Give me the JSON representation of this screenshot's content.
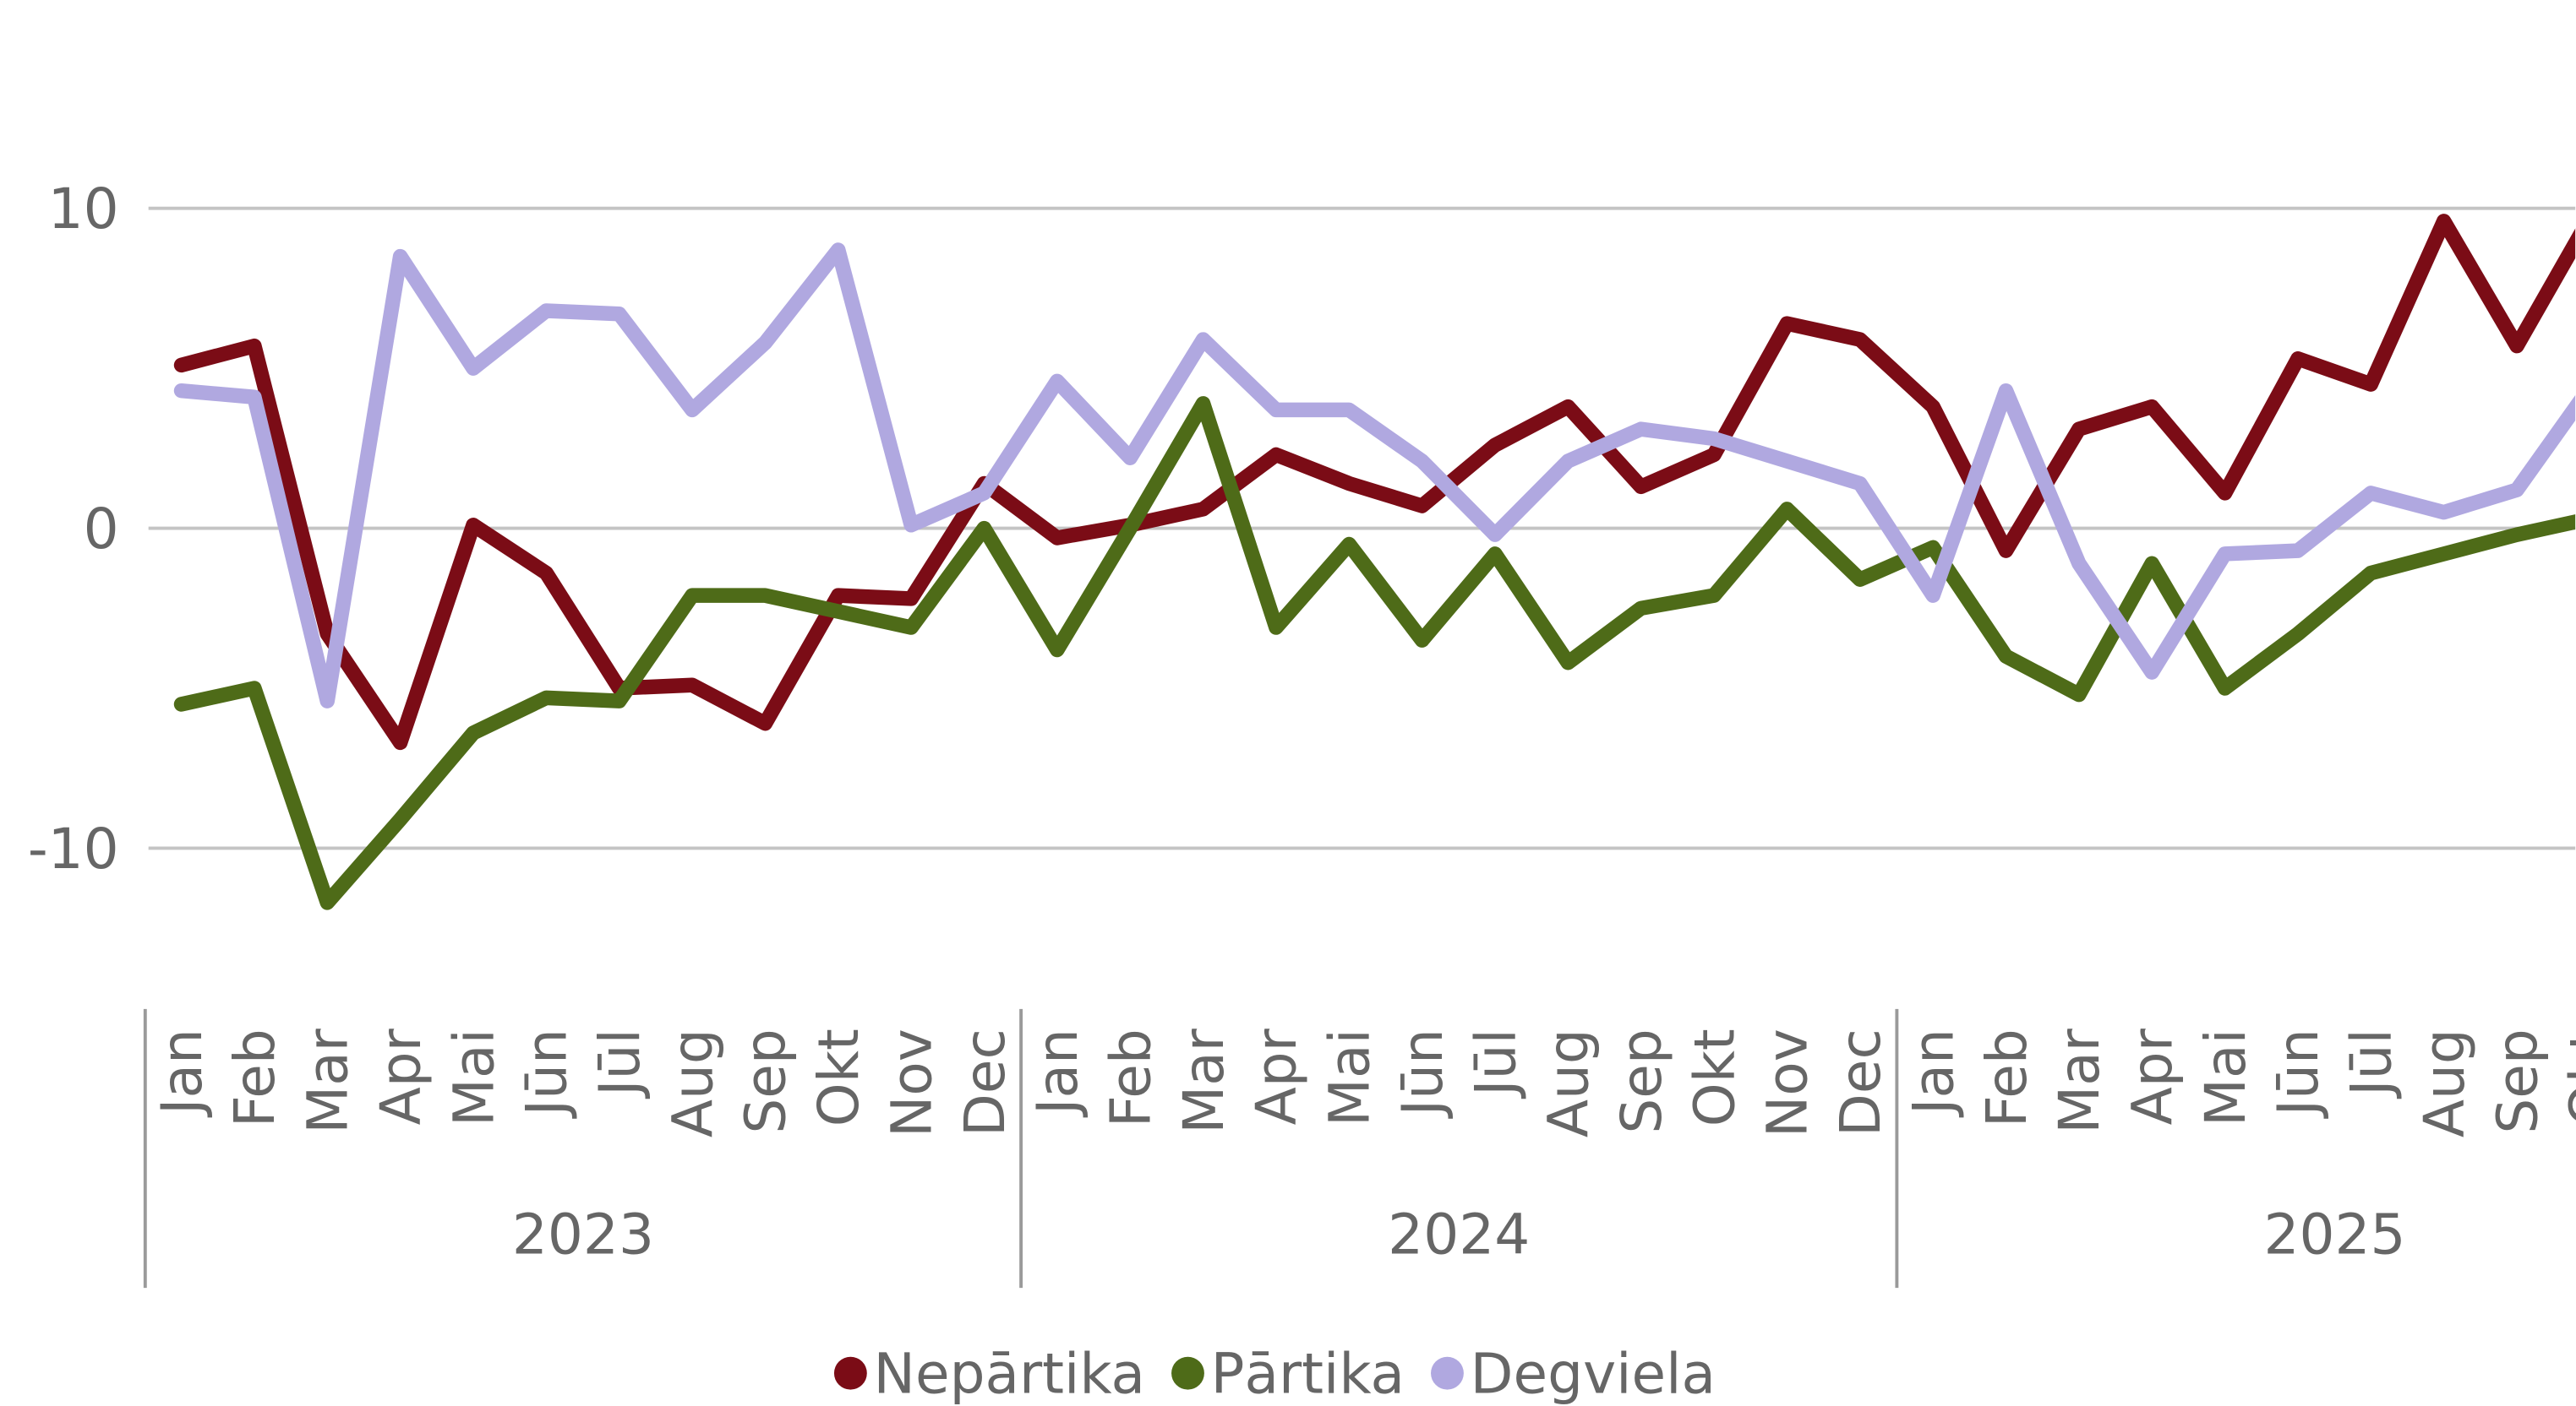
{
  "chart_data": {
    "type": "line",
    "categories": [
      "Jan",
      "Feb",
      "Mar",
      "Apr",
      "Mai",
      "Jūn",
      "Jūl",
      "Aug",
      "Sep",
      "Okt",
      "Nov",
      "Dec",
      "Jan",
      "Feb",
      "Mar",
      "Apr",
      "Mai",
      "Jūn",
      "Jūl",
      "Aug",
      "Sep",
      "Okt",
      "Nov",
      "Dec",
      "Jan",
      "Feb",
      "Mar",
      "Apr",
      "Mai",
      "Jūn",
      "Jūl",
      "Aug",
      "Sep",
      "Okt"
    ],
    "year_groups": [
      {
        "name": "2023",
        "months": 12
      },
      {
        "name": "2024",
        "months": 12
      },
      {
        "name": "2025",
        "months": 10
      }
    ],
    "series": [
      {
        "name": "Nepārtika",
        "color": "#7b0c16",
        "values": [
          5.1,
          5.7,
          -3.3,
          -6.7,
          0.1,
          -1.4,
          -5.0,
          -4.9,
          -6.1,
          -2.1,
          -2.2,
          1.4,
          -0.3,
          0.1,
          0.6,
          2.3,
          1.4,
          0.7,
          2.6,
          3.8,
          1.3,
          2.3,
          6.4,
          5.9,
          3.8,
          -0.7,
          3.1,
          3.8,
          1.1,
          5.3,
          4.5,
          9.6,
          5.7,
          9.7
        ]
      },
      {
        "name": "Pārtika",
        "color": "#4e6b18",
        "values": [
          -5.5,
          -5.0,
          -11.7,
          -9.1,
          -6.4,
          -5.3,
          -5.4,
          -2.1,
          -2.1,
          -2.6,
          -3.1,
          0.0,
          -3.8,
          0.0,
          3.9,
          -3.1,
          -0.5,
          -3.5,
          -0.8,
          -4.2,
          -2.5,
          -2.1,
          0.6,
          -1.6,
          -0.6,
          -4.0,
          -5.2,
          -1.1,
          -5.0,
          -3.3,
          -1.4,
          -0.8,
          -0.2,
          0.3
        ]
      },
      {
        "name": "Degviela",
        "color": "#b0a8e0",
        "values": [
          4.3,
          4.1,
          -5.4,
          8.5,
          5.0,
          6.8,
          6.7,
          3.7,
          5.8,
          8.7,
          0.1,
          1.1,
          4.6,
          2.2,
          5.9,
          3.7,
          3.7,
          2.1,
          -0.2,
          2.1,
          3.1,
          2.8,
          2.1,
          1.4,
          -2.1,
          4.3,
          -1.1,
          -4.5,
          -0.8,
          -0.7,
          1.1,
          0.5,
          1.2,
          4.4
        ]
      }
    ],
    "ylim": [
      -14,
      16
    ],
    "yticks": [
      -10,
      0,
      10
    ],
    "grid": true,
    "legend": "bottom"
  }
}
